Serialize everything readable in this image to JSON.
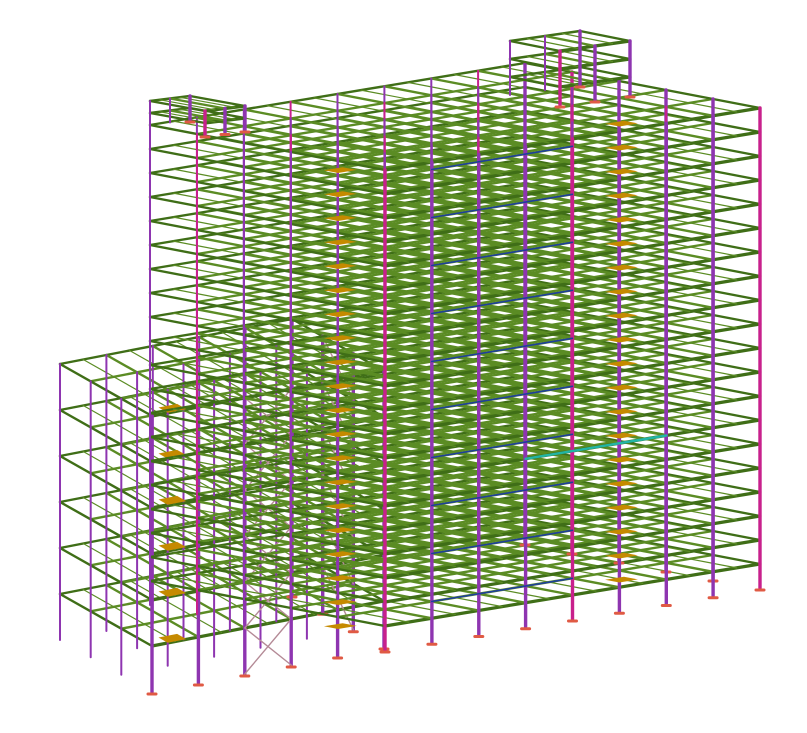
{
  "model": {
    "colors": {
      "background": "#ffffff",
      "beam": "#5b8c24",
      "beam_dark": "#3f6e17",
      "column": "#8e35b0",
      "column_accent": "#c8208c",
      "stair_landing": "#c58a00",
      "brace_blue": "#1e3f9c",
      "brace_cyan": "#22b5a6",
      "base_plate": "#e05a44",
      "connection": "#b48a96"
    }
  }
}
